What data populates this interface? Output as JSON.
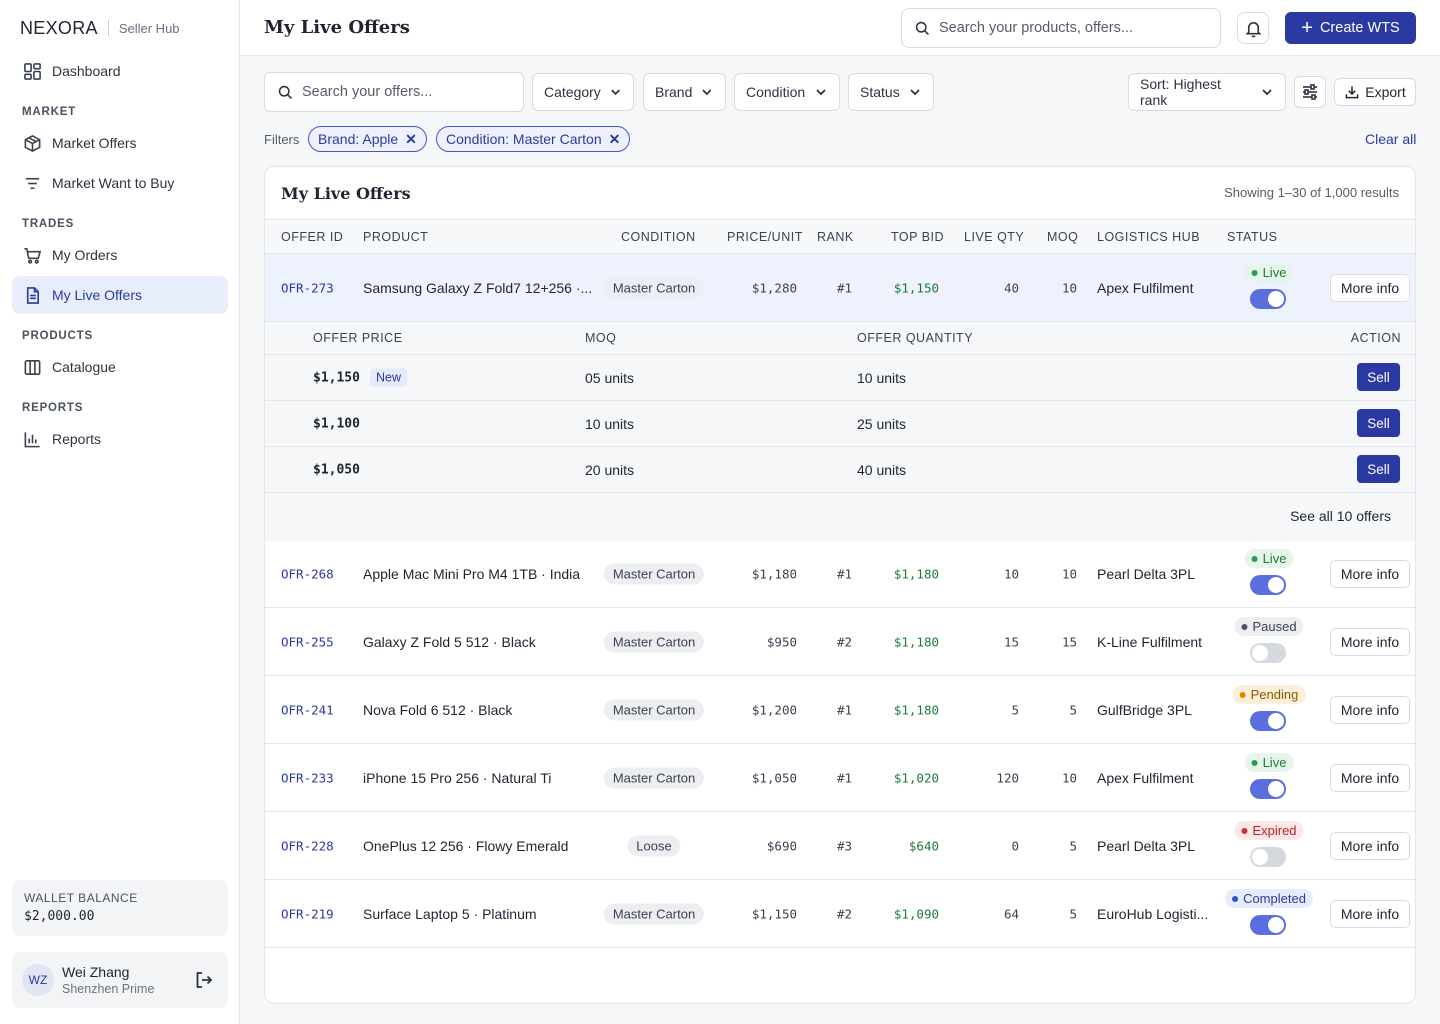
{
  "brand": {
    "name": "NEXORA",
    "sub": "Seller Hub"
  },
  "nav": {
    "dashboard": "Dashboard",
    "market_section": "MARKET",
    "market_offers": "Market Offers",
    "market_wtb": "Market Want to Buy",
    "trades_section": "TRADES",
    "my_orders": "My Orders",
    "my_live_offers": "My Live Offers",
    "products_section": "PRODUCTS",
    "catalogue": "Catalogue",
    "reports_section": "REPORTS",
    "reports": "Reports"
  },
  "wallet": {
    "label": "WALLET BALANCE",
    "value": "$2,000.00"
  },
  "user": {
    "initials": "WZ",
    "name": "Wei Zhang",
    "org": "Shenzhen Prime"
  },
  "header": {
    "title": "My Live Offers",
    "search_placeholder": "Search your products, offers...",
    "create_label": "Create WTS"
  },
  "toolbar": {
    "search_placeholder": "Search your offers...",
    "category": "Category",
    "brand": "Brand",
    "condition": "Condition",
    "status": "Status",
    "sort": "Sort: Highest rank",
    "export": "Export"
  },
  "filters": {
    "label": "Filters",
    "chips": [
      "Brand: Apple",
      "Condition: Master Carton"
    ],
    "clear_all": "Clear all"
  },
  "table": {
    "title": "My Live Offers",
    "count": "Showing 1–30 of 1,000 results",
    "columns": [
      "OFFER ID",
      "PRODUCT",
      "CONDITION",
      "PRICE/UNIT",
      "RANK",
      "TOP BID",
      "LIVE QTY",
      "MOQ",
      "LOGISTICS HUB",
      "STATUS"
    ],
    "more_label": "More info",
    "rows": [
      {
        "id": "OFR-273",
        "product": "Samsung Galaxy Z Fold7 12+256 ·...",
        "condition": "Master Carton",
        "price": "$1,280",
        "rank": "#1",
        "top_bid": "$1,150",
        "live_qty": "40",
        "moq": "10",
        "hub": "Apex Fulfilment",
        "status": "Live",
        "enabled": true
      },
      {
        "id": "OFR-268",
        "product": "Apple Mac Mini Pro M4 1TB · India",
        "condition": "Master Carton",
        "price": "$1,180",
        "rank": "#1",
        "top_bid": "$1,180",
        "live_qty": "10",
        "moq": "10",
        "hub": "Pearl Delta 3PL",
        "status": "Live",
        "enabled": true
      },
      {
        "id": "OFR-255",
        "product": "Galaxy Z Fold 5 512 · Black",
        "condition": "Master Carton",
        "price": "$950",
        "rank": "#2",
        "top_bid": "$1,180",
        "live_qty": "15",
        "moq": "15",
        "hub": "K-Line Fulfilment",
        "status": "Paused",
        "enabled": false
      },
      {
        "id": "OFR-241",
        "product": "Nova Fold 6 512 · Black",
        "condition": "Master Carton",
        "price": "$1,200",
        "rank": "#1",
        "top_bid": "$1,180",
        "live_qty": "5",
        "moq": "5",
        "hub": "GulfBridge 3PL",
        "status": "Pending",
        "enabled": true
      },
      {
        "id": "OFR-233",
        "product": "iPhone 15 Pro 256 · Natural Ti",
        "condition": "Master Carton",
        "price": "$1,050",
        "rank": "#1",
        "top_bid": "$1,020",
        "live_qty": "120",
        "moq": "10",
        "hub": "Apex Fulfilment",
        "status": "Live",
        "enabled": true
      },
      {
        "id": "OFR-228",
        "product": "OnePlus 12 256 · Flowy Emerald",
        "condition": "Loose",
        "price": "$690",
        "rank": "#3",
        "top_bid": "$640",
        "live_qty": "0",
        "moq": "5",
        "hub": "Pearl Delta 3PL",
        "status": "Expired",
        "enabled": false
      },
      {
        "id": "OFR-219",
        "product": "Surface Laptop 5 · Platinum",
        "condition": "Master Carton",
        "price": "$1,150",
        "rank": "#2",
        "top_bid": "$1,090",
        "live_qty": "64",
        "moq": "5",
        "hub": "EuroHub Logisti...",
        "status": "Completed",
        "enabled": true
      }
    ]
  },
  "subtable": {
    "columns": [
      "OFFER PRICE",
      "MOQ",
      "OFFER QUANTITY",
      "ACTION"
    ],
    "new_label": "New",
    "sell_label": "Sell",
    "rows": [
      {
        "price": "$1,150",
        "is_new": true,
        "moq": "05 units",
        "qty": "10 units"
      },
      {
        "price": "$1,100",
        "is_new": false,
        "moq": "10 units",
        "qty": "25 units"
      },
      {
        "price": "$1,050",
        "is_new": false,
        "moq": "20 units",
        "qty": "40 units"
      }
    ],
    "see_all": "See all 10 offers"
  },
  "status_colors": {
    "Live": {
      "bg": "#e6f4ea",
      "fg": "#1d7a3a",
      "dot": "#22a04b"
    },
    "Paused": {
      "bg": "#eceef1",
      "fg": "#3a4150",
      "dot": "#4a5160"
    },
    "Pending": {
      "bg": "#fcefd9",
      "fg": "#8a5a00",
      "dot": "#d98a00"
    },
    "Expired": {
      "bg": "#fbe7e7",
      "fg": "#b42323",
      "dot": "#d02f2f"
    },
    "Completed": {
      "bg": "#e7ecfb",
      "fg": "#2b3aa3",
      "dot": "#2b4fd6"
    }
  },
  "accent": "#2b3aa3"
}
